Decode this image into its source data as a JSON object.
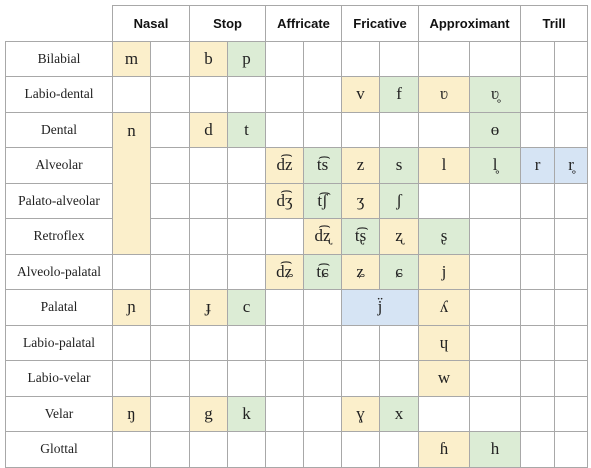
{
  "columns": [
    "Nasal",
    "Stop",
    "Affricate",
    "Fricative",
    "Approximant",
    "Trill"
  ],
  "rows": [
    {
      "label": "Bilabial",
      "cells": [
        "m",
        "",
        "b",
        "p",
        "",
        "",
        "",
        "",
        "",
        "",
        "",
        ""
      ]
    },
    {
      "label": "Labio-dental",
      "cells": [
        "",
        "",
        "",
        "",
        "",
        "",
        "v",
        "f",
        "ʋ",
        "ʋ̥",
        "",
        ""
      ]
    },
    {
      "label": "Dental",
      "cells": [
        "n",
        "",
        "d",
        "t",
        "",
        "",
        "",
        "",
        "",
        "ɵ",
        "",
        ""
      ]
    },
    {
      "label": "Alveolar",
      "cells": [
        "",
        "",
        "",
        "",
        "d͡z",
        "t͡s",
        "z",
        "s",
        "l",
        "l̥",
        "r",
        "r̥"
      ]
    },
    {
      "label": "Palato-alveolar",
      "cells": [
        "",
        "",
        "",
        "",
        "d͡ʒ",
        "t͡ʃ",
        "ʒ",
        "ʃ",
        "",
        "",
        "",
        ""
      ]
    },
    {
      "label": "Retroflex",
      "cells": [
        "",
        "",
        "",
        "",
        "d͡ʐ",
        "t͡ʂ",
        "ʐ",
        "ʂ",
        "",
        "",
        "",
        ""
      ]
    },
    {
      "label": "Alveolo-palatal",
      "cells": [
        "",
        "",
        "",
        "",
        "d͡ʑ",
        "t͡ɕ",
        "ʑ",
        "ɕ",
        "j",
        "",
        "",
        ""
      ]
    },
    {
      "label": "Palatal",
      "cells": [
        "ɲ",
        "",
        "ɟ",
        "c",
        "",
        "",
        "j̈",
        "",
        "ʎ",
        "",
        "",
        ""
      ]
    },
    {
      "label": "Labio-palatal",
      "cells": [
        "",
        "",
        "",
        "",
        "",
        "",
        "",
        "",
        "ɥ",
        "",
        "",
        ""
      ]
    },
    {
      "label": "Labio-velar",
      "cells": [
        "",
        "",
        "",
        "",
        "",
        "",
        "",
        "",
        "w",
        "",
        "",
        ""
      ]
    },
    {
      "label": "Velar",
      "cells": [
        "ŋ",
        "",
        "g",
        "k",
        "",
        "",
        "ɣ",
        "x",
        "",
        "",
        "",
        ""
      ]
    },
    {
      "label": "Glottal",
      "cells": [
        "",
        "",
        "",
        "",
        "",
        "",
        "",
        "",
        "ɦ",
        "h",
        "",
        ""
      ]
    }
  ],
  "colors": {
    "voiced": "#fbefcb",
    "voiceless": "#dcecd5",
    "neutral": "#d6e4f4",
    "border": "#a8a8a8"
  }
}
